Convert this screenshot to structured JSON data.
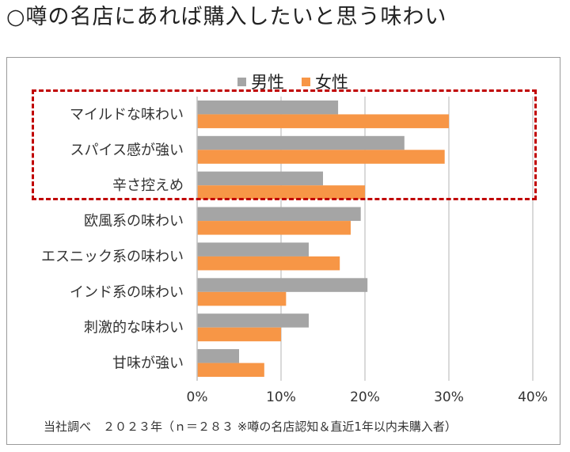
{
  "title": "○噂の名店にあれば購入したいと思う味わい",
  "footnote": "当社調べ　２０２３年（ｎ＝２８３ ※噂の名店認知＆直近1年以内未購入者）",
  "colors": {
    "male": "#a5a5a5",
    "female": "#f79646",
    "highlight": "#c00000",
    "grid": "#d9d9d9"
  },
  "chart_data": {
    "type": "bar",
    "orientation": "horizontal",
    "title": "○噂の名店にあれば購入したいと思う味わい",
    "categories": [
      "マイルドな味わい",
      "スパイス感が強い",
      "辛さ控えめ",
      "欧風系の味わい",
      "エスニック系の味わい",
      "インド系の味わい",
      "刺激的な味わい",
      "甘味が強い"
    ],
    "series": [
      {
        "name": "男性",
        "values": [
          16.8,
          24.7,
          15.0,
          19.5,
          13.3,
          20.3,
          13.3,
          5.0
        ]
      },
      {
        "name": "女性",
        "values": [
          30.0,
          29.5,
          20.0,
          18.3,
          17.0,
          10.6,
          10.0,
          8.0
        ]
      }
    ],
    "xlim": [
      0,
      40
    ],
    "xticks": [
      0,
      10,
      20,
      30,
      40
    ],
    "tick_labels": [
      "0%",
      "10%",
      "20%",
      "30%",
      "40%"
    ],
    "grid": true,
    "legend_position": "top",
    "highlighted_categories": [
      "マイルドな味わい",
      "スパイス感が強い",
      "辛さ控えめ"
    ]
  }
}
